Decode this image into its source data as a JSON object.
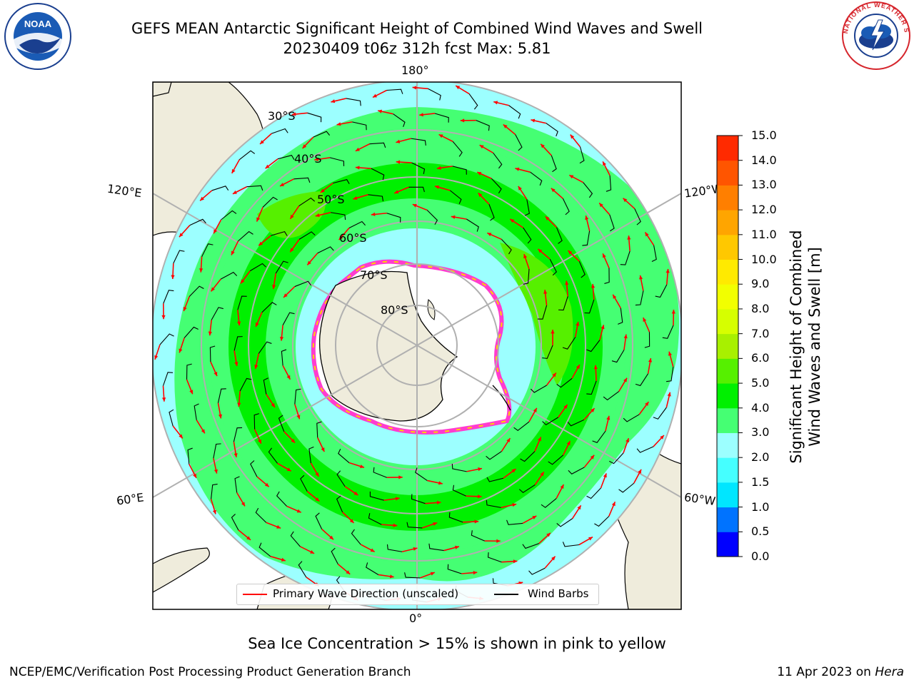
{
  "header": {
    "title_line1": "GEFS MEAN Antarctic Significant Height of Combined Wind Waves and Swell",
    "title_line2": "20230409 t06z 312h fcst   Max: 5.81",
    "noaa_logo_text": "NOAA",
    "nws_logo_text": "NATIONAL WEATHER SERVICE"
  },
  "map": {
    "longitude_labels": {
      "top": "180°",
      "bottom": "0°",
      "left_upper": "120°E",
      "left_lower": "60°E",
      "right_upper": "120°W",
      "right_lower": "60°W"
    },
    "latitude_labels": [
      "30°S",
      "40°S",
      "50°S",
      "60°S",
      "70°S",
      "80°S"
    ]
  },
  "legend": {
    "primary_wave": "Primary Wave Direction (unscaled)",
    "wind_barbs": "Wind Barbs",
    "primary_wave_color": "#ff0000",
    "wind_barbs_color": "#000000"
  },
  "colorbar": {
    "label_line1": "Significant Height of Combined",
    "label_line2": "Wind Waves and Swell [m]",
    "ticks": [
      "0.0",
      "0.5",
      "1.0",
      "1.5",
      "2.0",
      "3.0",
      "4.0",
      "5.0",
      "6.0",
      "7.0",
      "8.0",
      "9.0",
      "10.0",
      "11.0",
      "12.0",
      "13.0",
      "14.0",
      "15.0"
    ],
    "colors": [
      "#0000ff",
      "#0073ff",
      "#00e6ff",
      "#45ffff",
      "#9cffff",
      "#45ff73",
      "#00f000",
      "#56f000",
      "#a8f000",
      "#d6ff00",
      "#f2ff00",
      "#ffea00",
      "#ffc800",
      "#ffa500",
      "#ff7f00",
      "#ff5500",
      "#ff2a00",
      "#ff0000"
    ]
  },
  "footer": {
    "note": "Sea Ice Concentration > 15% is shown in pink to yellow",
    "left": "NCEP/EMC/Verification Post Processing Product Generation Branch",
    "right_prefix": "11 Apr 2023 on ",
    "right_host": "Hera"
  }
}
